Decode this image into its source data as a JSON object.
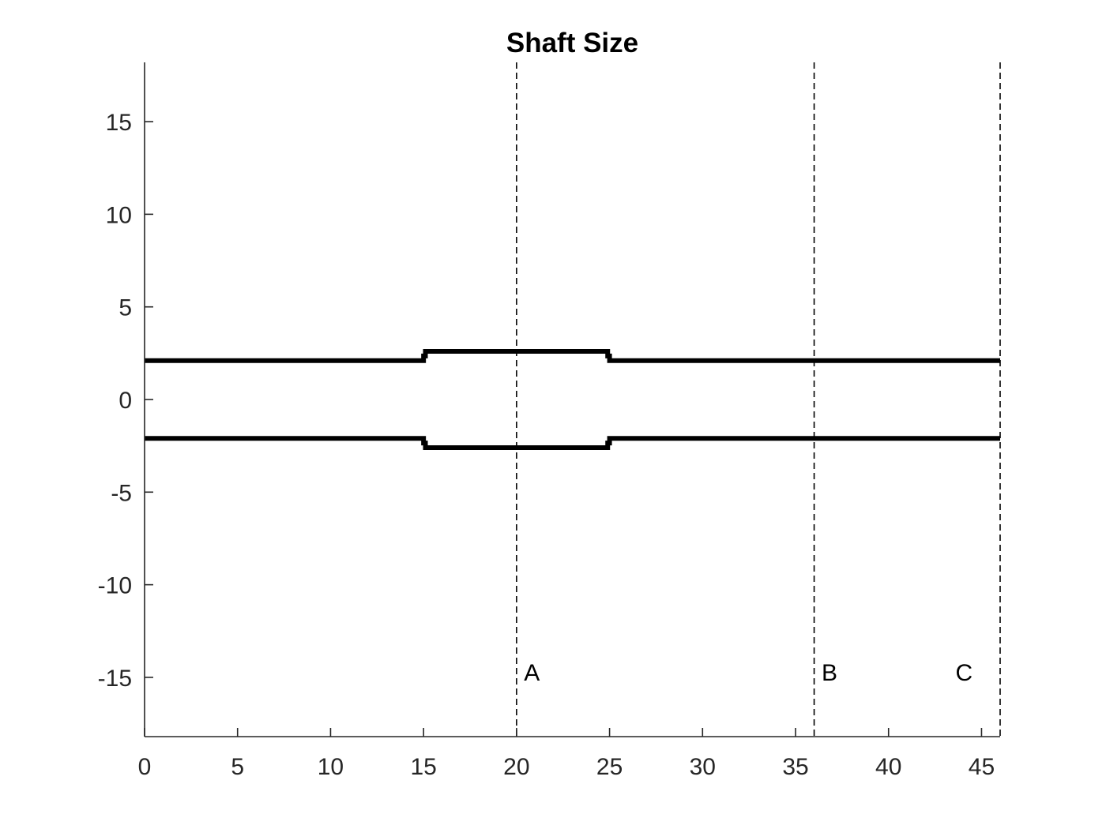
{
  "chart_data": {
    "type": "line",
    "title": "Shaft Size",
    "xlabel": "",
    "ylabel": "",
    "xlim": [
      0,
      46
    ],
    "ylim": [
      -18.2,
      18.2
    ],
    "grid": false,
    "x_ticks": [
      0,
      5,
      10,
      15,
      20,
      25,
      30,
      35,
      40,
      45
    ],
    "y_ticks": [
      -15,
      -10,
      -5,
      0,
      5,
      10,
      15
    ],
    "series": [
      {
        "color": "#000000",
        "style": "solid",
        "x": [
          0,
          15,
          15,
          15.1,
          15.1,
          24.9,
          24.9,
          25,
          25,
          46
        ],
        "y": [
          2.1,
          2.1,
          2.35,
          2.35,
          2.6,
          2.6,
          2.35,
          2.35,
          2.1,
          2.1
        ]
      },
      {
        "color": "#000000",
        "style": "solid",
        "x": [
          0,
          15,
          15,
          15.1,
          15.1,
          24.9,
          24.9,
          25,
          25,
          46
        ],
        "y": [
          -2.1,
          -2.1,
          -2.35,
          -2.35,
          -2.6,
          -2.6,
          -2.35,
          -2.35,
          -2.1,
          -2.1
        ]
      }
    ],
    "vlines": [
      {
        "x": 20,
        "style": "dashed",
        "label": "A"
      },
      {
        "x": 36,
        "style": "dashed",
        "label": "B"
      },
      {
        "x": 46,
        "style": "dashed",
        "label": "C"
      }
    ],
    "annotations": [
      {
        "text": "A",
        "x": 20.4,
        "y": -14.7
      },
      {
        "text": "B",
        "x": 36.4,
        "y": -14.7
      },
      {
        "text": "C",
        "x": 43.6,
        "y": -14.7
      }
    ]
  }
}
